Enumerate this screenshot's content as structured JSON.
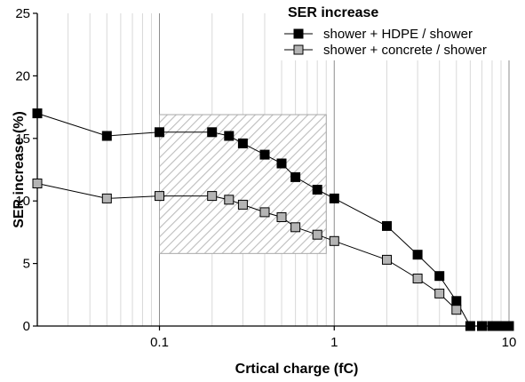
{
  "chart_data": {
    "type": "line",
    "title": "",
    "xlabel": "Crtical charge (fC)",
    "ylabel": "SER increase (%)",
    "xscale": "log",
    "xlim": [
      0.02,
      10
    ],
    "ylim": [
      0,
      25
    ],
    "x_ticks": [
      0.1,
      1,
      10
    ],
    "x_tick_labels": [
      "0.1",
      "1",
      "10"
    ],
    "y_ticks": [
      0,
      5,
      10,
      15,
      20,
      25
    ],
    "y_tick_labels": [
      "0",
      "5",
      "10",
      "15",
      "20",
      "25"
    ],
    "grid": "vertical minor gridlines (light gray), major at decades",
    "legend": {
      "title": "SER increase",
      "placement": "top-right"
    },
    "series": [
      {
        "name": "shower + HDPE / shower",
        "color": "#000000",
        "marker": "square-filled",
        "x": [
          0.02,
          0.05,
          0.1,
          0.2,
          0.25,
          0.3,
          0.4,
          0.5,
          0.6,
          0.8,
          1,
          2,
          3,
          4,
          5,
          6,
          7,
          8,
          9,
          10
        ],
        "y": [
          17.0,
          15.2,
          15.5,
          15.5,
          15.2,
          14.6,
          13.7,
          13.0,
          11.9,
          10.9,
          10.2,
          8.0,
          5.7,
          4.0,
          2.0,
          0.0,
          0.0,
          0.0,
          0.0,
          0.0
        ]
      },
      {
        "name": "shower + concrete / shower",
        "color": "#b4b4b4",
        "marker": "square-filled",
        "x": [
          0.02,
          0.05,
          0.1,
          0.2,
          0.25,
          0.3,
          0.4,
          0.5,
          0.6,
          0.8,
          1,
          2,
          3,
          4,
          5
        ],
        "y": [
          11.4,
          10.2,
          10.4,
          10.4,
          10.1,
          9.7,
          9.1,
          8.7,
          7.9,
          7.3,
          6.8,
          5.3,
          3.8,
          2.6,
          1.3
        ]
      }
    ],
    "highlight_region": {
      "x_range": [
        0.1,
        0.9
      ],
      "y_range": [
        5.8,
        16.9
      ],
      "fill": "diagonal-hatch",
      "color": "#c8c8c8"
    },
    "colors": {
      "axis": "#000000",
      "grid_minor": "#d9d9d9",
      "grid_major": "#8c8c8c",
      "hatch": "#bdbdbd"
    }
  }
}
